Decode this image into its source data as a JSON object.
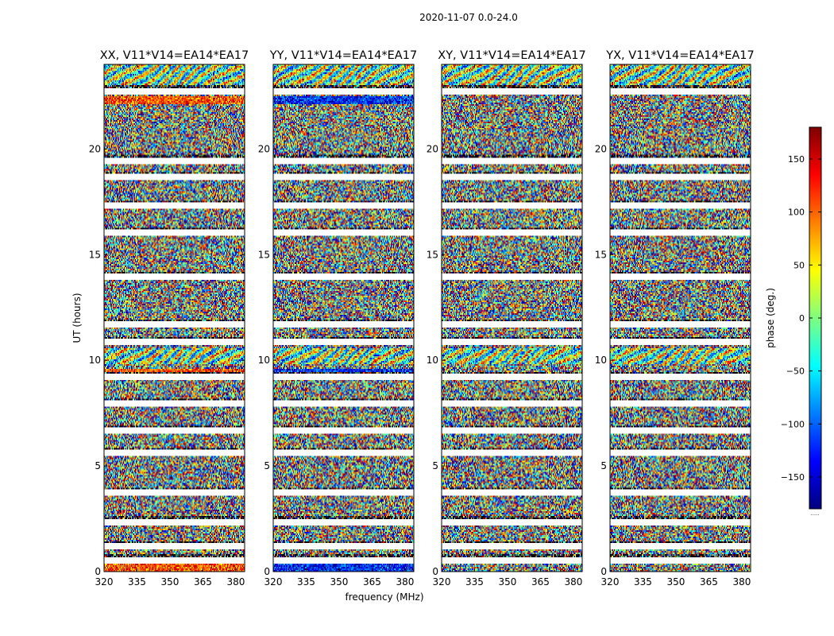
{
  "figure": {
    "suptitle": "2020-11-07 0.0-24.0",
    "xlabel": "frequency (MHz)",
    "ylabel": "UT (hours)",
    "colorbar_label": "phase (deg.)",
    "colorbar_footnote": "......",
    "colormap": "jet",
    "colormap_stops": [
      "#00007f",
      "#0000ff",
      "#007fff",
      "#00ffff",
      "#7fff7f",
      "#ffff00",
      "#ff7f00",
      "#ff0000",
      "#7f0000"
    ]
  },
  "chart_data": [
    {
      "type": "heatmap",
      "title": "XX, V11*V14=EA14*EA17",
      "xlim": [
        320,
        384
      ],
      "ylim": [
        0,
        24
      ],
      "xticks": [
        320,
        335,
        350,
        365,
        380
      ],
      "yticks": [
        0,
        5,
        10,
        15,
        20
      ],
      "value_range": [
        -180,
        180
      ],
      "flagged_rows_ut": [
        0.55,
        1.2,
        2.35,
        3.75,
        5.6,
        6.65,
        7.95,
        9.2,
        10.85,
        11.7,
        13.95,
        16.05,
        17.3,
        18.65,
        19.45,
        22.75
      ]
    },
    {
      "type": "heatmap",
      "title": "YY, V11*V14=EA14*EA17",
      "xlim": [
        320,
        384
      ],
      "ylim": [
        0,
        24
      ],
      "xticks": [
        320,
        335,
        350,
        365,
        380
      ],
      "yticks": [
        0,
        5,
        10,
        15,
        20
      ],
      "value_range": [
        -180,
        180
      ],
      "flagged_rows_ut": [
        0.55,
        1.2,
        2.35,
        3.75,
        5.6,
        6.65,
        7.95,
        9.2,
        10.85,
        11.7,
        13.95,
        16.05,
        17.3,
        18.65,
        19.45,
        22.75
      ]
    },
    {
      "type": "heatmap",
      "title": "XY, V11*V14=EA14*EA17",
      "xlim": [
        320,
        384
      ],
      "ylim": [
        0,
        24
      ],
      "xticks": [
        320,
        335,
        350,
        365,
        380
      ],
      "yticks": [
        0,
        5,
        10,
        15,
        20
      ],
      "value_range": [
        -180,
        180
      ],
      "flagged_rows_ut": [
        0.55,
        1.2,
        2.35,
        3.75,
        5.6,
        6.65,
        7.95,
        9.2,
        10.85,
        11.7,
        13.95,
        16.05,
        17.3,
        18.65,
        19.45,
        22.75
      ]
    },
    {
      "type": "heatmap",
      "title": "YX, V11*V14=EA14*EA17",
      "xlim": [
        320,
        384
      ],
      "ylim": [
        0,
        24
      ],
      "xticks": [
        320,
        335,
        350,
        365,
        380
      ],
      "yticks": [
        0,
        5,
        10,
        15,
        20
      ],
      "value_range": [
        -180,
        180
      ],
      "flagged_rows_ut": [
        0.55,
        1.2,
        2.35,
        3.75,
        5.6,
        6.65,
        7.95,
        9.2,
        10.85,
        11.7,
        13.95,
        16.05,
        17.3,
        18.65,
        19.45,
        22.75
      ]
    }
  ],
  "colorbar": {
    "range": [
      -180,
      180
    ],
    "ticks": [
      150,
      100,
      50,
      0,
      -50,
      -100,
      -150
    ],
    "tick_labels": [
      "150",
      "100",
      "50",
      "0",
      "−50",
      "−100",
      "−150"
    ]
  }
}
